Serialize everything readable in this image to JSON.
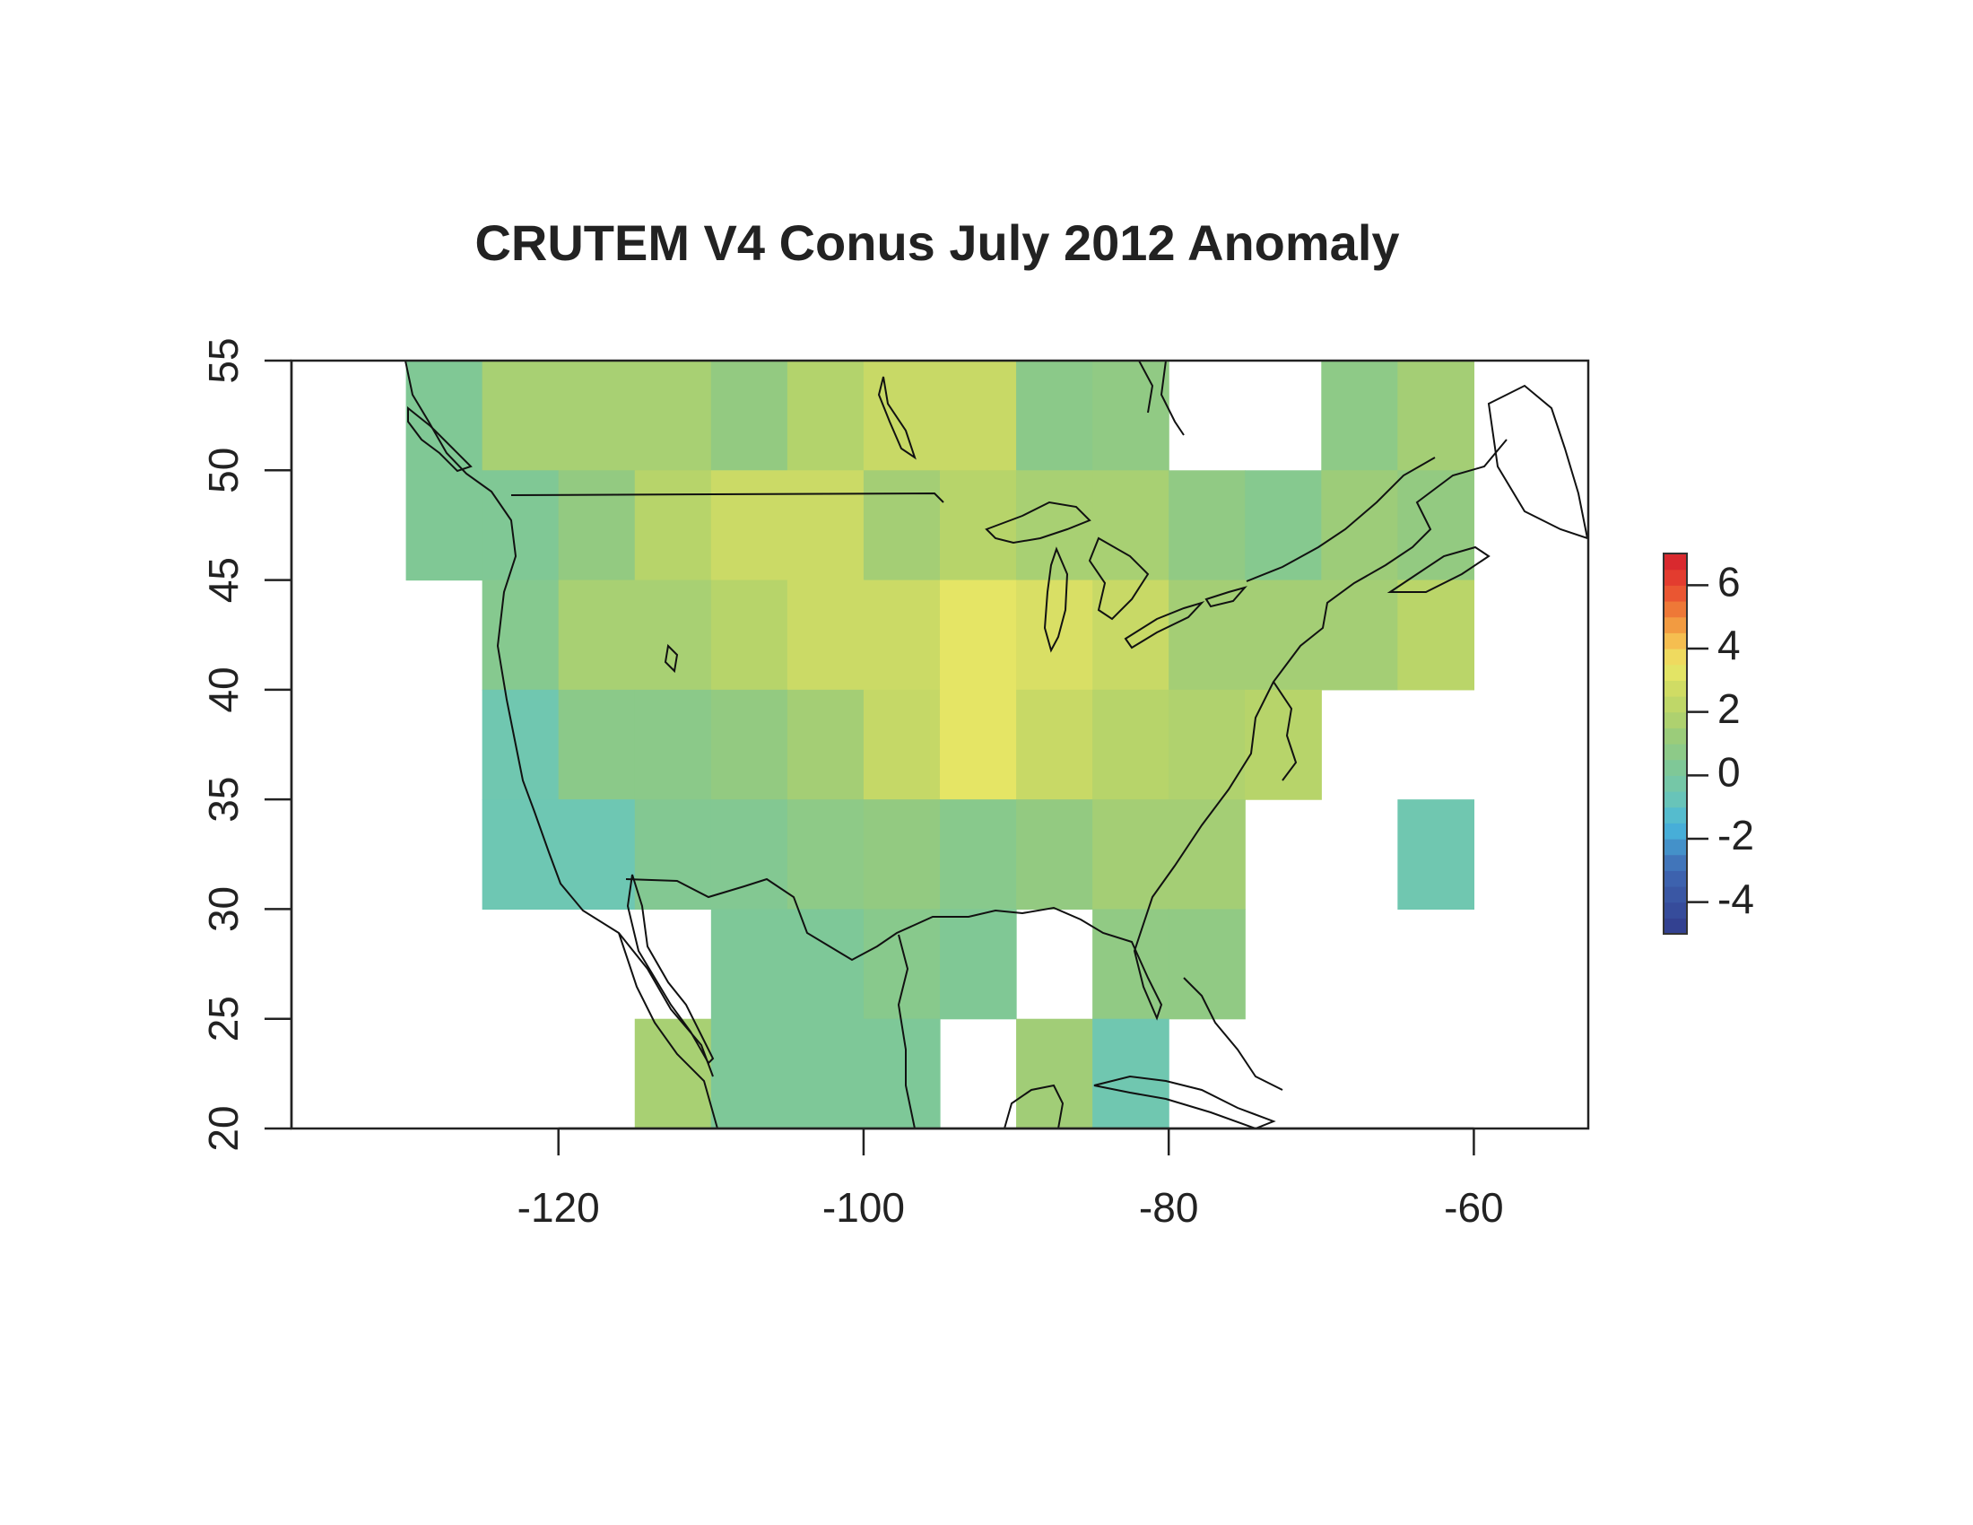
{
  "chart_data": {
    "type": "heatmap",
    "title": "CRUTEM V4 Conus July 2012  Anomaly",
    "xlabel": "",
    "ylabel": "",
    "xlim": [
      -137.5,
      -52.5
    ],
    "ylim": [
      20,
      55
    ],
    "x_ticks": [
      -120,
      -100,
      -80,
      -60
    ],
    "y_ticks": [
      20,
      25,
      30,
      35,
      40,
      45,
      50,
      55
    ],
    "grid_cell_deg": 5,
    "cells": [
      {
        "lon": [
          -130,
          -125
        ],
        "lat": [
          50,
          55
        ],
        "value": 0.3
      },
      {
        "lon": [
          -125,
          -120
        ],
        "lat": [
          50,
          55
        ],
        "value": 1.6
      },
      {
        "lon": [
          -120,
          -115
        ],
        "lat": [
          50,
          55
        ],
        "value": 1.6
      },
      {
        "lon": [
          -115,
          -110
        ],
        "lat": [
          50,
          55
        ],
        "value": 1.6
      },
      {
        "lon": [
          -110,
          -105
        ],
        "lat": [
          50,
          55
        ],
        "value": 1.0
      },
      {
        "lon": [
          -105,
          -100
        ],
        "lat": [
          50,
          55
        ],
        "value": 1.9
      },
      {
        "lon": [
          -100,
          -95
        ],
        "lat": [
          50,
          55
        ],
        "value": 2.5
      },
      {
        "lon": [
          -95,
          -90
        ],
        "lat": [
          50,
          55
        ],
        "value": 2.5
      },
      {
        "lon": [
          -90,
          -85
        ],
        "lat": [
          50,
          55
        ],
        "value": 0.7
      },
      {
        "lon": [
          -85,
          -80
        ],
        "lat": [
          50,
          55
        ],
        "value": 0.9
      },
      {
        "lon": [
          -70,
          -65
        ],
        "lat": [
          50,
          55
        ],
        "value": 0.8
      },
      {
        "lon": [
          -65,
          -60
        ],
        "lat": [
          50,
          55
        ],
        "value": 1.5
      },
      {
        "lon": [
          -130,
          -125
        ],
        "lat": [
          45,
          50
        ],
        "value": 0.3
      },
      {
        "lon": [
          -125,
          -120
        ],
        "lat": [
          45,
          50
        ],
        "value": 0.3
      },
      {
        "lon": [
          -120,
          -115
        ],
        "lat": [
          45,
          50
        ],
        "value": 1.0
      },
      {
        "lon": [
          -115,
          -110
        ],
        "lat": [
          45,
          50
        ],
        "value": 2.0
      },
      {
        "lon": [
          -110,
          -105
        ],
        "lat": [
          45,
          50
        ],
        "value": 2.6
      },
      {
        "lon": [
          -105,
          -100
        ],
        "lat": [
          45,
          50
        ],
        "value": 2.6
      },
      {
        "lon": [
          -100,
          -95
        ],
        "lat": [
          45,
          50
        ],
        "value": 1.5
      },
      {
        "lon": [
          -95,
          -90
        ],
        "lat": [
          45,
          50
        ],
        "value": 2.0
      },
      {
        "lon": [
          -90,
          -85
        ],
        "lat": [
          45,
          50
        ],
        "value": 1.6
      },
      {
        "lon": [
          -85,
          -80
        ],
        "lat": [
          45,
          50
        ],
        "value": 1.6
      },
      {
        "lon": [
          -80,
          -75
        ],
        "lat": [
          45,
          50
        ],
        "value": 0.9
      },
      {
        "lon": [
          -75,
          -70
        ],
        "lat": [
          45,
          50
        ],
        "value": 0.5
      },
      {
        "lon": [
          -70,
          -65
        ],
        "lat": [
          45,
          50
        ],
        "value": 1.3
      },
      {
        "lon": [
          -65,
          -60
        ],
        "lat": [
          45,
          50
        ],
        "value": 1.0
      },
      {
        "lon": [
          -125,
          -120
        ],
        "lat": [
          40,
          45
        ],
        "value": 0.5
      },
      {
        "lon": [
          -120,
          -115
        ],
        "lat": [
          40,
          45
        ],
        "value": 1.6
      },
      {
        "lon": [
          -115,
          -110
        ],
        "lat": [
          40,
          45
        ],
        "value": 1.6
      },
      {
        "lon": [
          -110,
          -105
        ],
        "lat": [
          40,
          45
        ],
        "value": 2.0
      },
      {
        "lon": [
          -105,
          -100
        ],
        "lat": [
          40,
          45
        ],
        "value": 2.6
      },
      {
        "lon": [
          -100,
          -95
        ],
        "lat": [
          40,
          45
        ],
        "value": 2.6
      },
      {
        "lon": [
          -95,
          -90
        ],
        "lat": [
          40,
          45
        ],
        "value": 3.3
      },
      {
        "lon": [
          -90,
          -85
        ],
        "lat": [
          40,
          45
        ],
        "value": 3.0
      },
      {
        "lon": [
          -85,
          -80
        ],
        "lat": [
          40,
          45
        ],
        "value": 2.5
      },
      {
        "lon": [
          -80,
          -75
        ],
        "lat": [
          40,
          45
        ],
        "value": 1.5
      },
      {
        "lon": [
          -75,
          -70
        ],
        "lat": [
          40,
          45
        ],
        "value": 1.5
      },
      {
        "lon": [
          -70,
          -65
        ],
        "lat": [
          40,
          45
        ],
        "value": 1.5
      },
      {
        "lon": [
          -65,
          -60
        ],
        "lat": [
          40,
          45
        ],
        "value": 2.1
      },
      {
        "lon": [
          -125,
          -120
        ],
        "lat": [
          35,
          40
        ],
        "value": -0.5
      },
      {
        "lon": [
          -120,
          -115
        ],
        "lat": [
          35,
          40
        ],
        "value": 0.7
      },
      {
        "lon": [
          -115,
          -110
        ],
        "lat": [
          35,
          40
        ],
        "value": 0.7
      },
      {
        "lon": [
          -110,
          -105
        ],
        "lat": [
          35,
          40
        ],
        "value": 1.0
      },
      {
        "lon": [
          -105,
          -100
        ],
        "lat": [
          35,
          40
        ],
        "value": 1.5
      },
      {
        "lon": [
          -100,
          -95
        ],
        "lat": [
          35,
          40
        ],
        "value": 2.4
      },
      {
        "lon": [
          -95,
          -90
        ],
        "lat": [
          35,
          40
        ],
        "value": 3.3
      },
      {
        "lon": [
          -90,
          -85
        ],
        "lat": [
          35,
          40
        ],
        "value": 2.5
      },
      {
        "lon": [
          -85,
          -80
        ],
        "lat": [
          35,
          40
        ],
        "value": 2.0
      },
      {
        "lon": [
          -80,
          -75
        ],
        "lat": [
          35,
          40
        ],
        "value": 1.8
      },
      {
        "lon": [
          -75,
          -70
        ],
        "lat": [
          35,
          40
        ],
        "value": 2.0
      },
      {
        "lon": [
          -125,
          -120
        ],
        "lat": [
          30,
          35
        ],
        "value": -0.6
      },
      {
        "lon": [
          -120,
          -115
        ],
        "lat": [
          30,
          35
        ],
        "value": -0.6
      },
      {
        "lon": [
          -115,
          -110
        ],
        "lat": [
          30,
          35
        ],
        "value": 0.4
      },
      {
        "lon": [
          -110,
          -105
        ],
        "lat": [
          30,
          35
        ],
        "value": 0.4
      },
      {
        "lon": [
          -105,
          -100
        ],
        "lat": [
          30,
          35
        ],
        "value": 0.8
      },
      {
        "lon": [
          -100,
          -95
        ],
        "lat": [
          30,
          35
        ],
        "value": 1.0
      },
      {
        "lon": [
          -95,
          -90
        ],
        "lat": [
          30,
          35
        ],
        "value": 0.6
      },
      {
        "lon": [
          -90,
          -85
        ],
        "lat": [
          30,
          35
        ],
        "value": 1.0
      },
      {
        "lon": [
          -85,
          -80
        ],
        "lat": [
          30,
          35
        ],
        "value": 1.5
      },
      {
        "lon": [
          -80,
          -75
        ],
        "lat": [
          30,
          35
        ],
        "value": 1.5
      },
      {
        "lon": [
          -65,
          -60
        ],
        "lat": [
          30,
          35
        ],
        "value": -0.5
      },
      {
        "lon": [
          -110,
          -105
        ],
        "lat": [
          25,
          30
        ],
        "value": 0.2
      },
      {
        "lon": [
          -105,
          -100
        ],
        "lat": [
          25,
          30
        ],
        "value": 0.2
      },
      {
        "lon": [
          -100,
          -95
        ],
        "lat": [
          25,
          30
        ],
        "value": 0.6
      },
      {
        "lon": [
          -95,
          -90
        ],
        "lat": [
          25,
          30
        ],
        "value": 0.3
      },
      {
        "lon": [
          -85,
          -80
        ],
        "lat": [
          25,
          30
        ],
        "value": 0.9
      },
      {
        "lon": [
          -80,
          -75
        ],
        "lat": [
          25,
          30
        ],
        "value": 0.9
      },
      {
        "lon": [
          -115,
          -110
        ],
        "lat": [
          20,
          25
        ],
        "value": 1.6
      },
      {
        "lon": [
          -110,
          -105
        ],
        "lat": [
          20,
          25
        ],
        "value": 0.2
      },
      {
        "lon": [
          -105,
          -100
        ],
        "lat": [
          20,
          25
        ],
        "value": 0.2
      },
      {
        "lon": [
          -100,
          -95
        ],
        "lat": [
          20,
          25
        ],
        "value": 0.2
      },
      {
        "lon": [
          -90,
          -85
        ],
        "lat": [
          20,
          25
        ],
        "value": 1.4
      },
      {
        "lon": [
          -85,
          -80
        ],
        "lat": [
          20,
          25
        ],
        "value": -0.5
      }
    ],
    "colorbar": {
      "range": [
        -5,
        7
      ],
      "tick_labels": [
        "6",
        "4",
        "2",
        "0",
        "-2",
        "-4"
      ],
      "tick_values": [
        6,
        4,
        2,
        0,
        -2,
        -4
      ],
      "stops": [
        {
          "value": -5,
          "color": "#313c8c"
        },
        {
          "value": -3,
          "color": "#3f67b3"
        },
        {
          "value": -1.6,
          "color": "#48b6dc"
        },
        {
          "value": -0.6,
          "color": "#6ec7b3"
        },
        {
          "value": 0.3,
          "color": "#80c895"
        },
        {
          "value": 1.2,
          "color": "#99cb7b"
        },
        {
          "value": 2.0,
          "color": "#b7d46a"
        },
        {
          "value": 2.8,
          "color": "#d2dc64"
        },
        {
          "value": 3.5,
          "color": "#ece866"
        },
        {
          "value": 4.2,
          "color": "#f5c251"
        },
        {
          "value": 5.0,
          "color": "#f0893a"
        },
        {
          "value": 6.0,
          "color": "#e8452f"
        },
        {
          "value": 7,
          "color": "#d4202d"
        }
      ]
    }
  }
}
